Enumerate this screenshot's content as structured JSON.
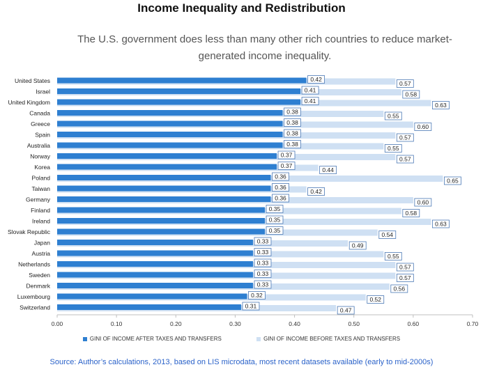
{
  "chart_data": {
    "type": "bar",
    "orientation": "horizontal",
    "title": "Income Inequality and Redistribution",
    "subtitle": "The U.S. government does less than many other rich countries to reduce market-generated income inequality.",
    "categories": [
      "United States",
      "Israel",
      "United Kingdom",
      "Canada",
      "Greece",
      "Spain",
      "Australia",
      "Norway",
      "Korea",
      "Poland",
      "Taiwan",
      "Germany",
      "Finland",
      "Ireland",
      "Slovak Republic",
      "Japan",
      "Austria",
      "Netherlands",
      "Sweden",
      "Denmark",
      "Luxembourg",
      "Switzerland"
    ],
    "series": [
      {
        "name": "GINI OF INCOME AFTER TAXES AND TRANSFERS",
        "color": "#2e7fd1",
        "values": [
          0.42,
          0.41,
          0.41,
          0.38,
          0.38,
          0.38,
          0.38,
          0.37,
          0.37,
          0.36,
          0.36,
          0.36,
          0.35,
          0.35,
          0.35,
          0.33,
          0.33,
          0.33,
          0.33,
          0.33,
          0.32,
          0.31
        ]
      },
      {
        "name": "GINI OF INCOME BEFORE TAXES AND TRANSFERS",
        "color": "#cfe0f3",
        "values": [
          0.57,
          0.58,
          0.63,
          0.55,
          0.6,
          0.57,
          0.55,
          0.57,
          0.44,
          0.65,
          0.42,
          0.6,
          0.58,
          0.63,
          0.54,
          0.49,
          0.55,
          0.57,
          0.57,
          0.56,
          0.52,
          0.47
        ]
      }
    ],
    "x_ticks": [
      "0.00",
      "0.10",
      "0.20",
      "0.30",
      "0.40",
      "0.50",
      "0.60",
      "0.70"
    ],
    "xlim": [
      0,
      0.7
    ],
    "legend_position": "bottom",
    "source": "Source: Author’s calculations, 2013, based on LIS microdata, most recent datasets available (early to mid-2000s)"
  }
}
